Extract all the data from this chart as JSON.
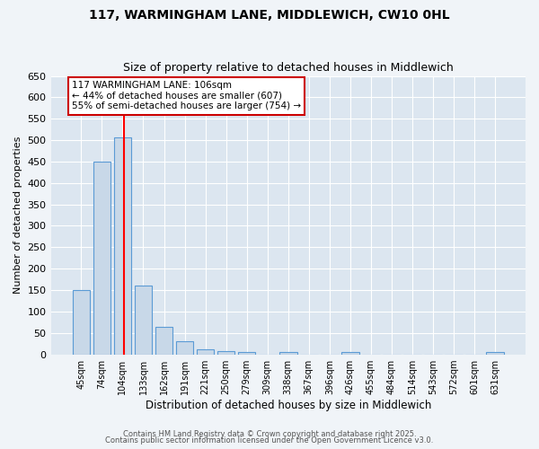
{
  "title1": "117, WARMINGHAM LANE, MIDDLEWICH, CW10 0HL",
  "title2": "Size of property relative to detached houses in Middlewich",
  "xlabel": "Distribution of detached houses by size in Middlewich",
  "ylabel": "Number of detached properties",
  "categories": [
    "45sqm",
    "74sqm",
    "104sqm",
    "133sqm",
    "162sqm",
    "191sqm",
    "221sqm",
    "250sqm",
    "279sqm",
    "309sqm",
    "338sqm",
    "367sqm",
    "396sqm",
    "426sqm",
    "455sqm",
    "484sqm",
    "514sqm",
    "543sqm",
    "572sqm",
    "601sqm",
    "631sqm"
  ],
  "values": [
    150,
    450,
    507,
    160,
    65,
    30,
    12,
    8,
    5,
    0,
    5,
    0,
    0,
    5,
    0,
    0,
    0,
    0,
    0,
    0,
    5
  ],
  "bar_color": "#c8d8e8",
  "bar_edge_color": "#5b9bd5",
  "red_line_x": 2,
  "annotation_text": "117 WARMINGHAM LANE: 106sqm\n← 44% of detached houses are smaller (607)\n55% of semi-detached houses are larger (754) →",
  "annotation_box_color": "#ffffff",
  "annotation_box_edge": "#cc0000",
  "ylim": [
    0,
    650
  ],
  "yticks": [
    0,
    50,
    100,
    150,
    200,
    250,
    300,
    350,
    400,
    450,
    500,
    550,
    600,
    650
  ],
  "fig_background_color": "#f0f4f8",
  "ax_background_color": "#dce6f0",
  "grid_color": "#ffffff",
  "footer1": "Contains HM Land Registry data © Crown copyright and database right 2025.",
  "footer2": "Contains public sector information licensed under the Open Government Licence v3.0."
}
